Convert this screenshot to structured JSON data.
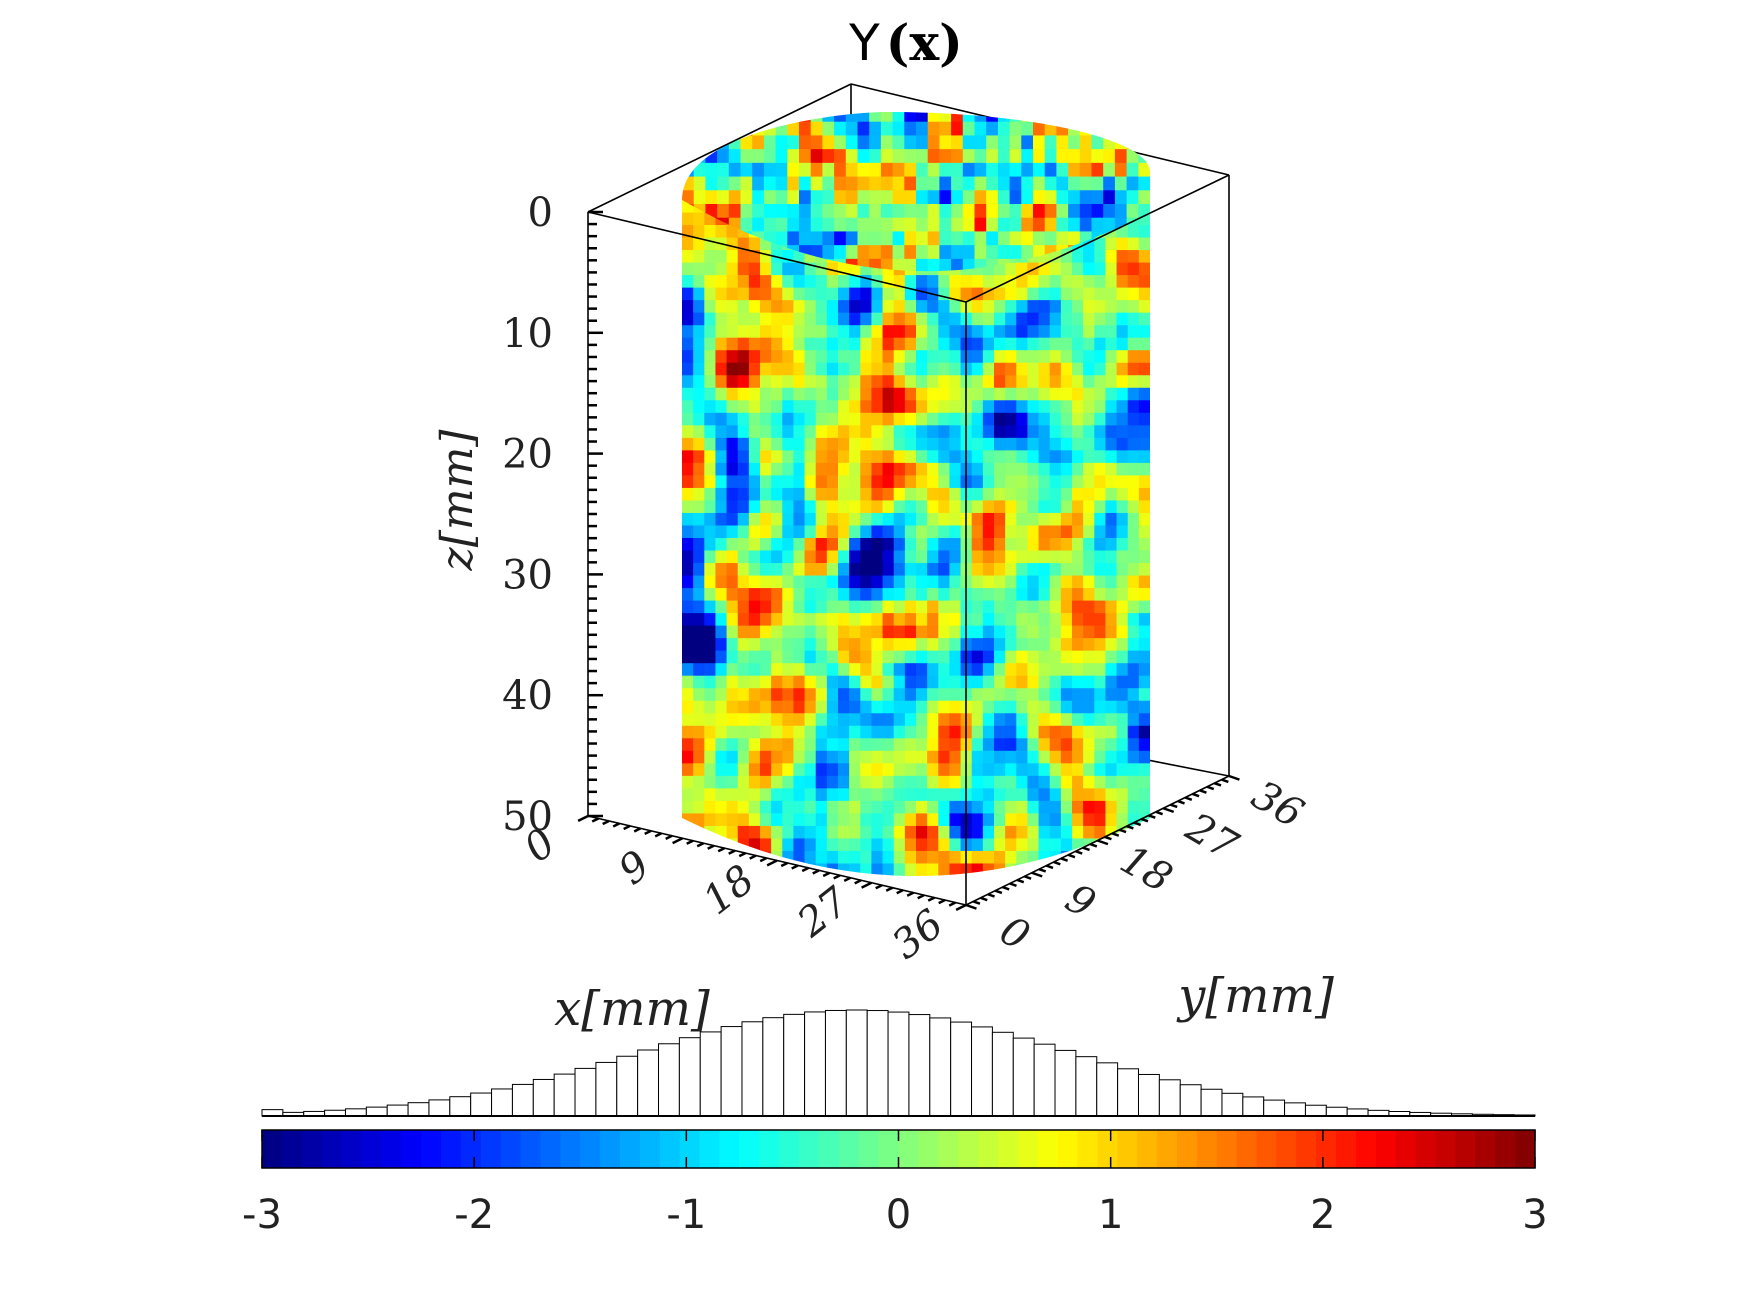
{
  "chart_data": [
    {
      "type": "heatmap",
      "subtype": "3d-voxel-cylinder",
      "title": "Y(x)",
      "title_main": "Y",
      "title_arg": "(x)",
      "xlabel": "x[mm]",
      "ylabel": "y[mm]",
      "zlabel": "z[mm]",
      "x_ticks": [
        "0",
        "9",
        "18",
        "27",
        "36"
      ],
      "y_ticks": [
        "0",
        "9",
        "18",
        "27",
        "36"
      ],
      "z_ticks": [
        "0",
        "10",
        "20",
        "30",
        "40",
        "50"
      ],
      "xlim": [
        0,
        36
      ],
      "ylim": [
        0,
        36
      ],
      "zlim": [
        0,
        50
      ],
      "z_reversed": true,
      "color_scale": "jet",
      "clim": [
        -3,
        3
      ],
      "box": true
    },
    {
      "type": "bar",
      "subtype": "histogram",
      "title": "",
      "xlim": [
        -3,
        3
      ],
      "bins": 61,
      "distribution": "approximately normal, centered near -0.2",
      "bar_fill": "#ffffff",
      "bar_edge": "#000000"
    }
  ],
  "colorbar": {
    "ticks": [
      "-3",
      "-2",
      "-1",
      "0",
      "1",
      "2",
      "3"
    ],
    "range": [
      -3,
      3
    ],
    "colormap": "jet"
  }
}
